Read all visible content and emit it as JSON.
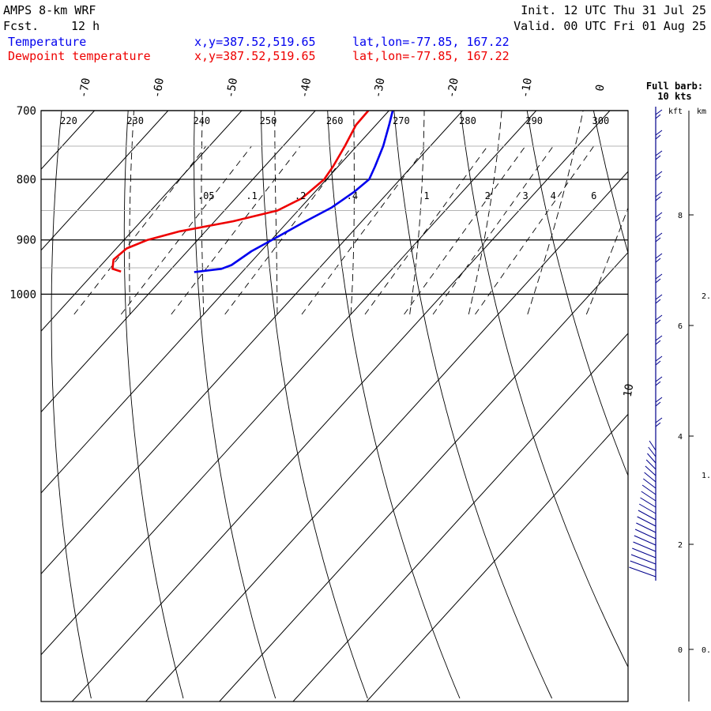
{
  "header": {
    "model": "AMPS 8-km WRF",
    "fcst_label": "Fcst.",
    "fcst_value": "12 h",
    "init": "Init. 12 UTC Thu 31 Jul 25",
    "valid": "Valid. 00 UTC Fri 01 Aug 25",
    "temp_name": "Temperature",
    "dew_name": "Dewpoint temperature",
    "temp_xy": "x,y=387.52,519.65",
    "dew_xy": "x,y=387.52,519.65",
    "temp_latlon": "lat,lon=-77.85, 167.22",
    "dew_latlon": "lat,lon=-77.85, 167.22"
  },
  "wind_panel": {
    "barb_title": "Full barb:",
    "barb_value": "10 kts",
    "kft_label": "kft",
    "km_label": "km"
  },
  "colors": {
    "temperature": "#0000ee",
    "dewpoint": "#ee0000",
    "wind_barbs": "#00008b"
  },
  "chart_data": {
    "type": "line",
    "title": "AMPS 8-km WRF",
    "yscale": "log-pressure",
    "ylim": [
      1040,
      700
    ],
    "pressure_ticks": [
      700,
      800,
      900,
      1000
    ],
    "temperature_ticks": [
      -70,
      -60,
      -50,
      -40,
      -30,
      -20,
      -10,
      0,
      10
    ],
    "theta_labels": [
      220,
      230,
      240,
      250,
      260,
      270,
      280,
      290,
      300
    ],
    "mixing_ratio_labels": [
      ".05",
      ".1",
      ".2",
      ".4",
      "1",
      "2",
      "3",
      "4",
      "6"
    ],
    "kft_ticks": [
      8,
      6,
      4,
      2,
      0
    ],
    "km_ticks": [
      "2.",
      "1.",
      "0."
    ],
    "series": [
      {
        "name": "Temperature",
        "color": "#0000ee",
        "points": [
          {
            "p": 700,
            "t": -29.5
          },
          {
            "p": 720,
            "t": -28.2
          },
          {
            "p": 750,
            "t": -26.4
          },
          {
            "p": 780,
            "t": -25.0
          },
          {
            "p": 800,
            "t": -24.2
          },
          {
            "p": 820,
            "t": -24.7
          },
          {
            "p": 845,
            "t": -25.8
          },
          {
            "p": 870,
            "t": -27.8
          },
          {
            "p": 900,
            "t": -29.9
          },
          {
            "p": 920,
            "t": -31.3
          },
          {
            "p": 945,
            "t": -32.3
          },
          {
            "p": 952,
            "t": -33.2
          },
          {
            "p": 958,
            "t": -36.5
          }
        ]
      },
      {
        "name": "Dewpoint temperature",
        "color": "#ee0000",
        "points": [
          {
            "p": 700,
            "t": -32.8
          },
          {
            "p": 720,
            "t": -32.7
          },
          {
            "p": 750,
            "t": -31.6
          },
          {
            "p": 780,
            "t": -30.7
          },
          {
            "p": 800,
            "t": -30.3
          },
          {
            "p": 830,
            "t": -31.0
          },
          {
            "p": 850,
            "t": -32.8
          },
          {
            "p": 868,
            "t": -37.5
          },
          {
            "p": 885,
            "t": -43.5
          },
          {
            "p": 900,
            "t": -46.8
          },
          {
            "p": 915,
            "t": -48.6
          },
          {
            "p": 935,
            "t": -49.0
          },
          {
            "p": 952,
            "t": -48.0
          },
          {
            "p": 957,
            "t": -46.5
          }
        ]
      }
    ],
    "wind_barbs": {
      "units": "kts",
      "full_barb": 10
    }
  }
}
